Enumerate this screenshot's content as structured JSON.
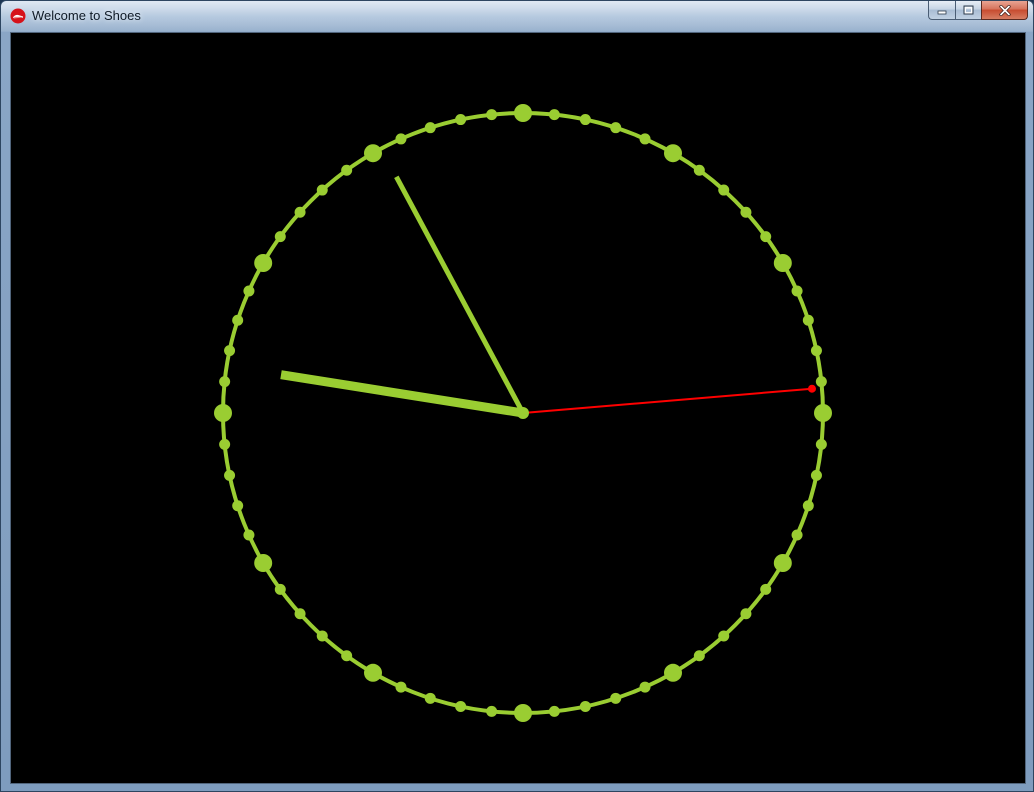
{
  "window": {
    "title": "Welcome to Shoes",
    "app_icon": "shoes-logo-icon",
    "controls": {
      "minimize_icon": "minimize-icon",
      "maximize_icon": "maximize-icon",
      "close_icon": "close-icon"
    }
  },
  "clock": {
    "face_color": "#9acd32",
    "second_hand_color": "#ff0000",
    "background_color": "#000000",
    "minute_ticks": 60,
    "major_tick_interval": 5,
    "hands": {
      "hour_position_minutes": 46.5,
      "minute_position_minutes": 55.3,
      "second_position_minutes": 14.2
    }
  }
}
